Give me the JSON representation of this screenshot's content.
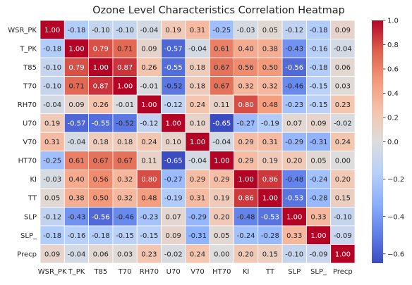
{
  "chart_data": {
    "type": "heatmap",
    "title": "Ozone Level Characteristics Correlation Heatmap",
    "xlabel": "",
    "ylabel": "",
    "row_labels": [
      "WSR_PK",
      "T_PK",
      "T85",
      "T70",
      "RH70",
      "U70",
      "V70",
      "HT70",
      "KI",
      "TT",
      "SLP",
      "SLP_",
      "Precp"
    ],
    "col_labels": [
      "WSR_PK",
      "T_PK",
      "T85",
      "T70",
      "RH70",
      "U70",
      "V70",
      "HT70",
      "KI",
      "TT",
      "SLP",
      "SLP_",
      "Precp"
    ],
    "values": [
      [
        1.0,
        -0.18,
        -0.1,
        -0.1,
        -0.04,
        0.19,
        0.31,
        -0.25,
        -0.03,
        0.05,
        -0.12,
        -0.18,
        0.09
      ],
      [
        -0.18,
        1.0,
        0.79,
        0.71,
        0.09,
        -0.57,
        -0.04,
        0.61,
        0.4,
        0.38,
        -0.43,
        -0.16,
        -0.04
      ],
      [
        -0.1,
        0.79,
        1.0,
        0.87,
        0.26,
        -0.55,
        0.18,
        0.67,
        0.56,
        0.5,
        -0.56,
        -0.18,
        0.06
      ],
      [
        -0.1,
        0.71,
        0.87,
        1.0,
        -0.01,
        -0.52,
        0.18,
        0.67,
        0.32,
        0.32,
        -0.46,
        -0.15,
        0.03
      ],
      [
        -0.04,
        0.09,
        0.26,
        -0.01,
        1.0,
        -0.12,
        0.24,
        0.11,
        0.8,
        0.48,
        -0.23,
        -0.15,
        0.23
      ],
      [
        0.19,
        -0.57,
        -0.55,
        -0.52,
        -0.12,
        1.0,
        0.1,
        -0.65,
        -0.27,
        -0.19,
        0.07,
        0.09,
        -0.02
      ],
      [
        0.31,
        -0.04,
        0.18,
        0.18,
        0.24,
        0.1,
        1.0,
        -0.04,
        0.29,
        0.31,
        -0.29,
        -0.31,
        0.24
      ],
      [
        -0.25,
        0.61,
        0.67,
        0.67,
        0.11,
        -0.65,
        -0.04,
        1.0,
        0.29,
        0.19,
        0.2,
        0.05,
        -0.0
      ],
      [
        -0.03,
        0.4,
        0.56,
        0.32,
        0.8,
        -0.27,
        0.29,
        0.29,
        1.0,
        0.86,
        -0.48,
        -0.24,
        0.2
      ],
      [
        0.05,
        0.38,
        0.5,
        0.32,
        0.48,
        -0.19,
        0.31,
        0.19,
        0.86,
        1.0,
        -0.53,
        -0.28,
        0.15
      ],
      [
        -0.12,
        -0.43,
        -0.56,
        -0.46,
        -0.23,
        0.07,
        -0.29,
        0.2,
        -0.48,
        -0.53,
        1.0,
        0.33,
        -0.1
      ],
      [
        -0.18,
        -0.16,
        -0.18,
        -0.15,
        -0.15,
        0.09,
        -0.31,
        0.05,
        -0.24,
        -0.28,
        0.33,
        1.0,
        -0.09
      ],
      [
        0.09,
        -0.04,
        0.06,
        0.03,
        0.23,
        -0.02,
        0.24,
        -0.0,
        0.2,
        0.15,
        -0.1,
        -0.09,
        1.0
      ]
    ],
    "value_format": "0.00",
    "colormap": "coolwarm",
    "color_range": [
      -0.65,
      1.0
    ],
    "colorbar_ticks": [
      1.0,
      0.8,
      0.6,
      0.4,
      0.2,
      0.0,
      -0.2,
      -0.4,
      -0.6
    ],
    "colorbar_tick_labels": [
      "1.0",
      "0.8",
      "0.6",
      "0.4",
      "0.2",
      "0.0",
      "−0.2",
      "−0.4",
      "−0.6"
    ],
    "grid": true,
    "grid_color": "#ffffff",
    "legend": "colorbar-right"
  }
}
